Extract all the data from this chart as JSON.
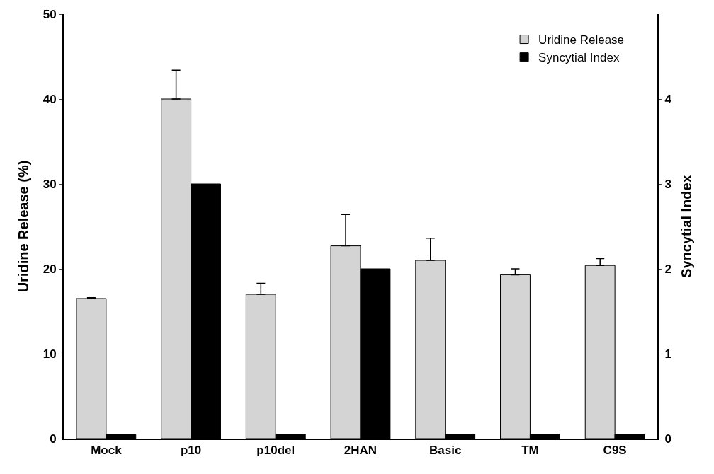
{
  "chart_data": {
    "type": "bar",
    "categories": [
      "Mock",
      "p10",
      "p10del",
      "2HAN",
      "Basic",
      "TM",
      "C9S"
    ],
    "ylabel": "Uridine Release (%)",
    "y2label": "Syncytial Index",
    "ylim": [
      0,
      50
    ],
    "yticks": [
      0,
      10,
      20,
      30,
      40,
      50
    ],
    "y2lim": [
      0,
      5
    ],
    "y2ticks": [
      0,
      1,
      2,
      3,
      4
    ],
    "legend": "top right",
    "series": [
      {
        "name": "Uridine Release",
        "color": "#d4d4d4",
        "values": [
          16.5,
          40,
          17,
          22.7,
          21,
          19.3,
          20.4
        ],
        "errors": [
          [
            16.5,
            16.6
          ],
          [
            40,
            43.4
          ],
          [
            17,
            18.3
          ],
          [
            22.7,
            26.4
          ],
          [
            21,
            23.6
          ],
          [
            19.3,
            20
          ],
          [
            20.4,
            21.2
          ]
        ]
      },
      {
        "name": "Syncytial Index",
        "color": "#000000",
        "axis": "y2",
        "values": [
          0.05,
          3.0,
          0.05,
          2.0,
          0.05,
          0.05,
          0.05
        ]
      }
    ]
  }
}
